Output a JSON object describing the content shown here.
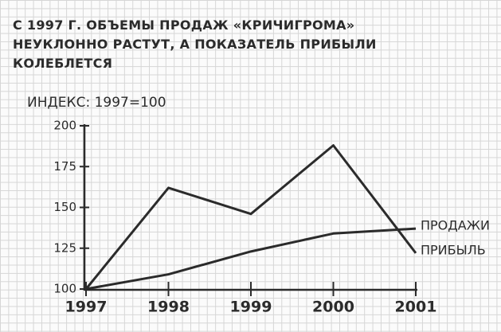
{
  "chart_data": {
    "type": "line",
    "title": "С 1997 Г. ОБЪЕМЫ ПРОДАЖ «КРИЧИГРОМА» НЕУКЛОННО РАСТУТ, А ПОКАЗАТЕЛЬ ПРИБЫЛИ КОЛЕБЛЕТСЯ",
    "y_label": "ИНДЕКС: 1997=100",
    "categories": [
      "1997",
      "1998",
      "1999",
      "2000",
      "2001"
    ],
    "series": [
      {
        "name": "ПРОДАЖИ",
        "color": "#2b2b2b",
        "values": [
          100,
          109,
          123,
          134,
          137
        ]
      },
      {
        "name": "ПРИБЫЛЬ",
        "color": "#2b2b2b",
        "values": [
          100,
          162,
          146,
          188,
          122
        ]
      }
    ],
    "ylim": [
      100,
      200
    ],
    "yticks": [
      100,
      125,
      150,
      175,
      200
    ]
  }
}
